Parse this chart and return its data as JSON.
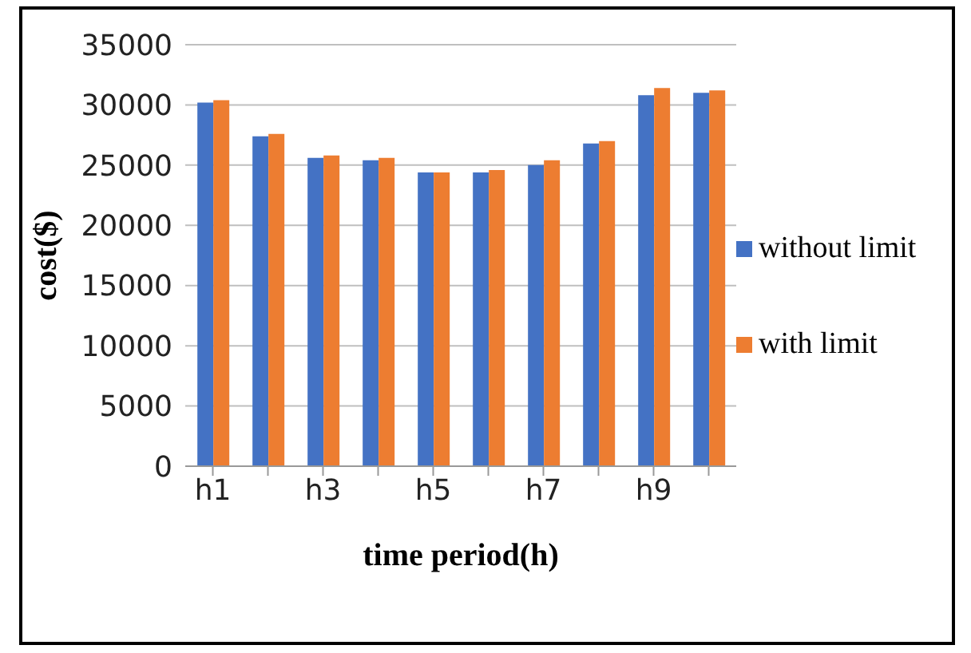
{
  "chart_data": {
    "type": "bar",
    "xlabel": "time period(h)",
    "ylabel": "cost($)",
    "categories": [
      "h1",
      null,
      "h3",
      null,
      "h5",
      null,
      "h7",
      null,
      "h9",
      null
    ],
    "series": [
      {
        "name": "without limit",
        "color": "#4472c4",
        "values": [
          30200,
          27400,
          25600,
          25400,
          24400,
          24400,
          25000,
          26800,
          30800,
          31000
        ]
      },
      {
        "name": "with limit",
        "color": "#ed7d31",
        "values": [
          30400,
          27600,
          25800,
          25600,
          24400,
          24600,
          25400,
          27000,
          31400,
          31200
        ]
      }
    ],
    "ylim": [
      0,
      35000
    ],
    "yticks": [
      0,
      5000,
      10000,
      15000,
      20000,
      25000,
      30000,
      35000
    ],
    "grid": "y",
    "legend": "right"
  }
}
